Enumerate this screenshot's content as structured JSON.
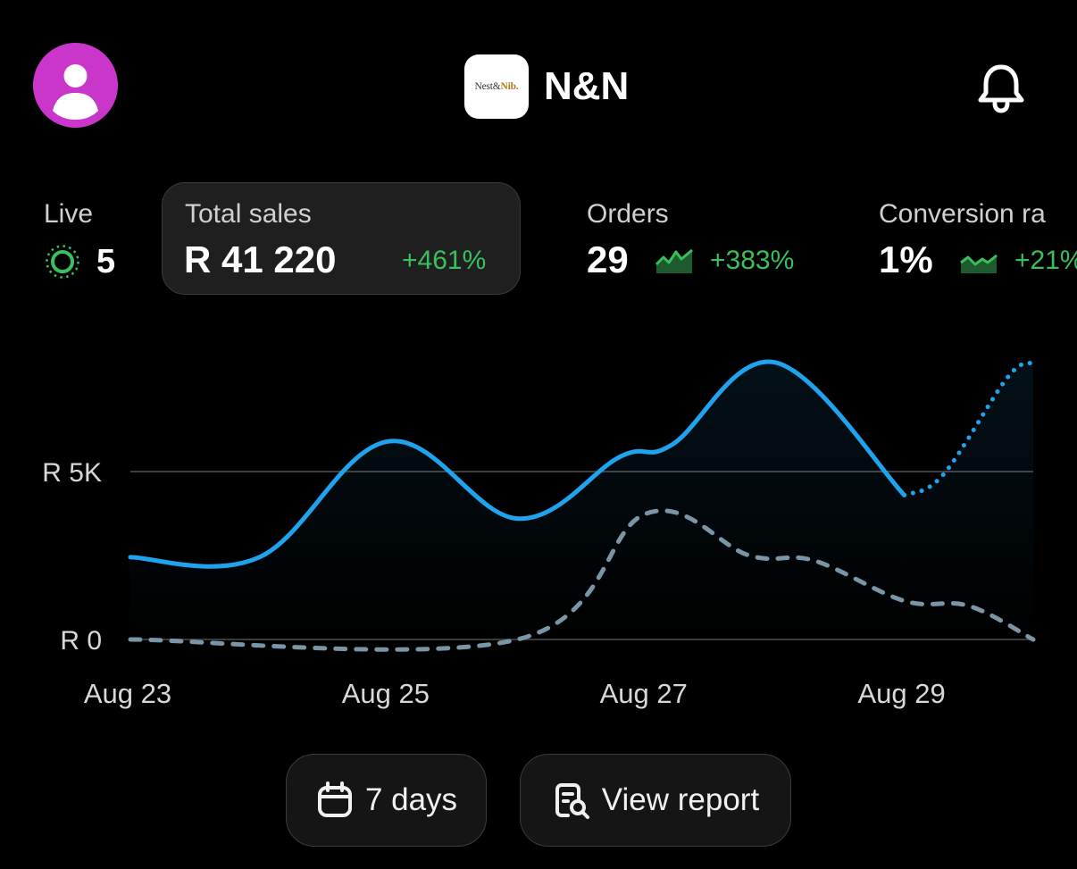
{
  "header": {
    "store_name": "N&N",
    "logo_text_a": "Nest&",
    "logo_text_b": "Nib.",
    "avatar_icon": "user-avatar-icon",
    "notifications_icon": "bell-icon"
  },
  "metrics": {
    "live": {
      "label": "Live",
      "value": "5",
      "icon": "live-pulse-icon"
    },
    "total_sales": {
      "label": "Total sales",
      "value": "R 41 220",
      "change": "+461%"
    },
    "orders": {
      "label": "Orders",
      "value": "29",
      "change": "+383%",
      "icon": "trend-up-icon"
    },
    "conversion": {
      "label": "Conversion ra",
      "value": "1%",
      "change": "+21%",
      "icon": "trend-up-icon"
    }
  },
  "colors": {
    "accent_line": "#1fa3ee",
    "comparison_line": "#7a95a6",
    "positive": "#39c05d",
    "avatar_bg": "#c936c9",
    "card_bg": "#1f1f1f"
  },
  "chart_data": {
    "type": "line",
    "y_ticks": [
      {
        "label": "R 0",
        "value": 0
      },
      {
        "label": "R 5K",
        "value": 5000
      }
    ],
    "x_ticks": [
      {
        "label": "Aug 23",
        "x": 0
      },
      {
        "label": "Aug 25",
        "x": 2
      },
      {
        "label": "Aug 27",
        "x": 4
      },
      {
        "label": "Aug 29",
        "x": 6
      }
    ],
    "x_range": [
      0,
      7
    ],
    "y_range": [
      0,
      8300
    ],
    "grid": true,
    "series": [
      {
        "style": "solid",
        "points": [
          [
            0,
            2450
          ],
          [
            1,
            2450
          ],
          [
            2,
            5900
          ],
          [
            3,
            3600
          ],
          [
            3.8,
            5450
          ],
          [
            4.2,
            5800
          ],
          [
            5,
            8250
          ],
          [
            6,
            4300
          ]
        ]
      },
      {
        "style": "dotted-projection",
        "points": [
          [
            6,
            4300
          ],
          [
            6.3,
            4900
          ],
          [
            6.8,
            7800
          ],
          [
            7,
            8250
          ]
        ]
      },
      {
        "style": "dashed-comparison",
        "points": [
          [
            0,
            0
          ],
          [
            3,
            0
          ],
          [
            4,
            3750
          ],
          [
            4.8,
            2500
          ],
          [
            5.3,
            2350
          ],
          [
            6,
            1150
          ],
          [
            6.5,
            1000
          ],
          [
            7,
            0
          ]
        ]
      }
    ]
  },
  "actions": {
    "range": {
      "label": "7 days",
      "icon": "calendar-icon"
    },
    "report": {
      "label": "View report",
      "icon": "report-search-icon"
    }
  }
}
